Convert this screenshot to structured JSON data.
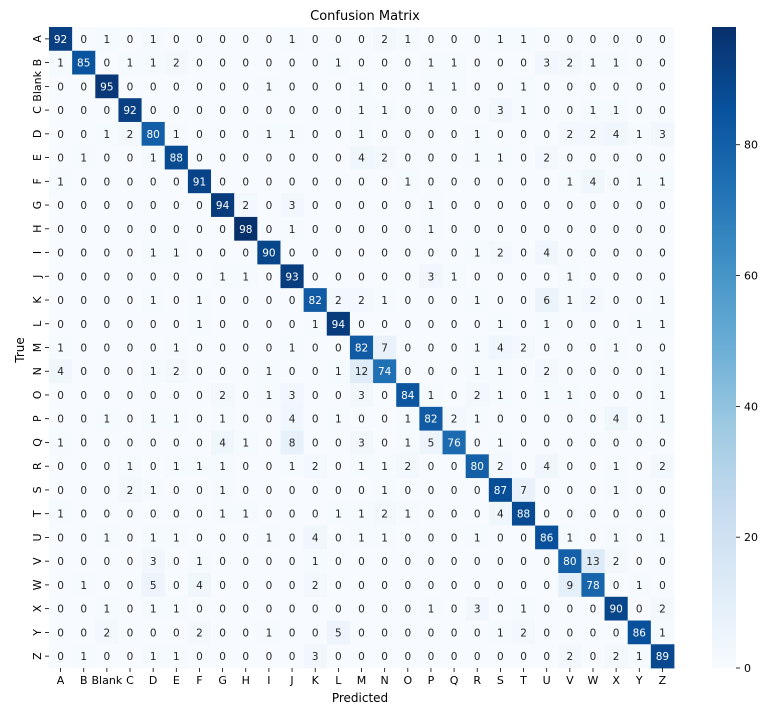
{
  "chart_data": {
    "type": "heatmap",
    "title": "Confusion Matrix",
    "xlabel": "Predicted",
    "ylabel": "True",
    "x_categories": [
      "A",
      "B",
      "Blank",
      "C",
      "D",
      "E",
      "F",
      "G",
      "H",
      "I",
      "J",
      "K",
      "L",
      "M",
      "N",
      "O",
      "P",
      "Q",
      "R",
      "S",
      "T",
      "U",
      "V",
      "W",
      "X",
      "Y",
      "Z"
    ],
    "y_categories": [
      "A",
      "B",
      "Blank",
      "C",
      "D",
      "E",
      "F",
      "G",
      "H",
      "I",
      "J",
      "K",
      "L",
      "M",
      "N",
      "O",
      "P",
      "Q",
      "R",
      "S",
      "T",
      "U",
      "V",
      "W",
      "X",
      "Y",
      "Z"
    ],
    "values": [
      [
        92,
        0,
        1,
        0,
        1,
        0,
        0,
        0,
        0,
        0,
        1,
        0,
        0,
        0,
        2,
        1,
        0,
        0,
        0,
        1,
        1,
        0,
        0,
        0,
        0,
        0,
        0
      ],
      [
        1,
        85,
        0,
        1,
        1,
        2,
        0,
        0,
        0,
        0,
        0,
        0,
        1,
        0,
        0,
        0,
        1,
        1,
        0,
        0,
        0,
        3,
        2,
        1,
        1,
        0,
        0
      ],
      [
        0,
        0,
        95,
        0,
        0,
        0,
        0,
        0,
        0,
        1,
        0,
        0,
        0,
        1,
        0,
        0,
        1,
        1,
        0,
        0,
        1,
        0,
        0,
        0,
        0,
        0,
        0
      ],
      [
        0,
        0,
        0,
        92,
        0,
        0,
        0,
        0,
        0,
        0,
        0,
        0,
        0,
        1,
        1,
        0,
        0,
        0,
        0,
        3,
        1,
        0,
        0,
        1,
        1,
        0,
        0
      ],
      [
        0,
        0,
        1,
        2,
        80,
        1,
        0,
        0,
        0,
        1,
        1,
        0,
        0,
        1,
        0,
        0,
        0,
        0,
        1,
        0,
        0,
        0,
        2,
        2,
        4,
        1,
        3
      ],
      [
        0,
        1,
        0,
        0,
        1,
        88,
        0,
        0,
        0,
        0,
        0,
        0,
        0,
        4,
        2,
        0,
        0,
        0,
        1,
        1,
        0,
        2,
        0,
        0,
        0,
        0,
        0
      ],
      [
        1,
        0,
        0,
        0,
        0,
        0,
        91,
        0,
        0,
        0,
        0,
        0,
        0,
        0,
        0,
        1,
        0,
        0,
        0,
        0,
        0,
        0,
        1,
        4,
        0,
        1,
        1
      ],
      [
        0,
        0,
        0,
        0,
        0,
        0,
        0,
        94,
        2,
        0,
        3,
        0,
        0,
        0,
        0,
        0,
        1,
        0,
        0,
        0,
        0,
        0,
        0,
        0,
        0,
        0,
        0
      ],
      [
        0,
        0,
        0,
        0,
        0,
        0,
        0,
        0,
        98,
        0,
        1,
        0,
        0,
        0,
        0,
        0,
        1,
        0,
        0,
        0,
        0,
        0,
        0,
        0,
        0,
        0,
        0
      ],
      [
        0,
        0,
        0,
        0,
        1,
        1,
        0,
        0,
        0,
        90,
        0,
        0,
        0,
        0,
        0,
        0,
        0,
        0,
        1,
        2,
        0,
        4,
        0,
        0,
        0,
        0,
        0
      ],
      [
        0,
        0,
        0,
        0,
        0,
        0,
        0,
        1,
        1,
        0,
        93,
        0,
        0,
        0,
        0,
        0,
        3,
        1,
        0,
        0,
        0,
        0,
        1,
        0,
        0,
        0,
        0
      ],
      [
        0,
        0,
        0,
        0,
        1,
        0,
        1,
        0,
        0,
        0,
        0,
        82,
        2,
        2,
        1,
        0,
        0,
        0,
        1,
        0,
        0,
        6,
        1,
        2,
        0,
        0,
        1
      ],
      [
        0,
        0,
        0,
        0,
        0,
        0,
        1,
        0,
        0,
        0,
        0,
        1,
        94,
        0,
        0,
        0,
        0,
        0,
        0,
        1,
        0,
        1,
        0,
        0,
        0,
        1,
        1
      ],
      [
        1,
        0,
        0,
        0,
        0,
        1,
        0,
        0,
        0,
        0,
        1,
        0,
        0,
        82,
        7,
        0,
        0,
        0,
        1,
        4,
        2,
        0,
        0,
        0,
        1,
        0,
        0
      ],
      [
        4,
        0,
        0,
        0,
        1,
        2,
        0,
        0,
        0,
        1,
        0,
        0,
        1,
        12,
        74,
        0,
        0,
        0,
        1,
        1,
        0,
        2,
        0,
        0,
        0,
        0,
        1
      ],
      [
        0,
        0,
        0,
        0,
        0,
        0,
        0,
        2,
        0,
        1,
        3,
        0,
        0,
        3,
        0,
        84,
        1,
        0,
        2,
        1,
        0,
        1,
        1,
        0,
        0,
        0,
        1
      ],
      [
        0,
        0,
        1,
        0,
        1,
        1,
        0,
        1,
        0,
        0,
        4,
        0,
        1,
        0,
        0,
        1,
        82,
        2,
        1,
        0,
        0,
        0,
        0,
        0,
        4,
        0,
        1
      ],
      [
        1,
        0,
        0,
        0,
        0,
        0,
        0,
        4,
        1,
        0,
        8,
        0,
        0,
        3,
        0,
        1,
        5,
        76,
        0,
        1,
        0,
        0,
        0,
        0,
        0,
        0,
        0
      ],
      [
        0,
        0,
        0,
        1,
        0,
        1,
        1,
        1,
        0,
        0,
        1,
        2,
        0,
        1,
        1,
        2,
        0,
        0,
        80,
        2,
        0,
        4,
        0,
        0,
        1,
        0,
        2
      ],
      [
        0,
        0,
        0,
        2,
        1,
        0,
        0,
        1,
        0,
        0,
        0,
        0,
        0,
        0,
        1,
        0,
        0,
        0,
        0,
        87,
        7,
        0,
        0,
        0,
        1,
        0,
        0
      ],
      [
        1,
        0,
        0,
        0,
        0,
        0,
        0,
        1,
        1,
        0,
        0,
        0,
        1,
        1,
        2,
        1,
        0,
        0,
        0,
        4,
        88,
        0,
        0,
        0,
        0,
        0,
        0
      ],
      [
        0,
        0,
        1,
        0,
        1,
        1,
        0,
        0,
        0,
        1,
        0,
        4,
        0,
        1,
        1,
        0,
        0,
        0,
        1,
        0,
        0,
        86,
        1,
        0,
        1,
        0,
        1
      ],
      [
        0,
        0,
        0,
        0,
        3,
        0,
        1,
        0,
        0,
        0,
        0,
        1,
        0,
        0,
        0,
        0,
        0,
        0,
        0,
        0,
        0,
        0,
        80,
        13,
        2,
        0,
        0
      ],
      [
        0,
        1,
        0,
        0,
        5,
        0,
        4,
        0,
        0,
        0,
        0,
        2,
        0,
        0,
        0,
        0,
        0,
        0,
        0,
        0,
        0,
        0,
        9,
        78,
        0,
        1,
        0
      ],
      [
        0,
        0,
        1,
        0,
        1,
        1,
        0,
        0,
        0,
        0,
        0,
        0,
        0,
        0,
        0,
        0,
        1,
        0,
        3,
        0,
        1,
        0,
        0,
        0,
        90,
        0,
        2
      ],
      [
        0,
        0,
        2,
        0,
        0,
        0,
        2,
        0,
        0,
        1,
        0,
        0,
        5,
        0,
        0,
        0,
        0,
        0,
        0,
        1,
        2,
        0,
        0,
        0,
        0,
        86,
        1
      ],
      [
        0,
        1,
        0,
        0,
        1,
        1,
        0,
        0,
        0,
        0,
        0,
        3,
        0,
        0,
        0,
        0,
        0,
        0,
        0,
        0,
        0,
        0,
        2,
        0,
        2,
        1,
        89
      ]
    ],
    "colormap": [
      "#f7fbff",
      "#deebf7",
      "#c6dbef",
      "#9ecae1",
      "#6baed6",
      "#4292c6",
      "#2171b5",
      "#08519c",
      "#08306b"
    ],
    "colorbar": {
      "min": 0,
      "max": 98,
      "ticks": [
        0,
        20,
        40,
        60,
        80
      ]
    }
  }
}
